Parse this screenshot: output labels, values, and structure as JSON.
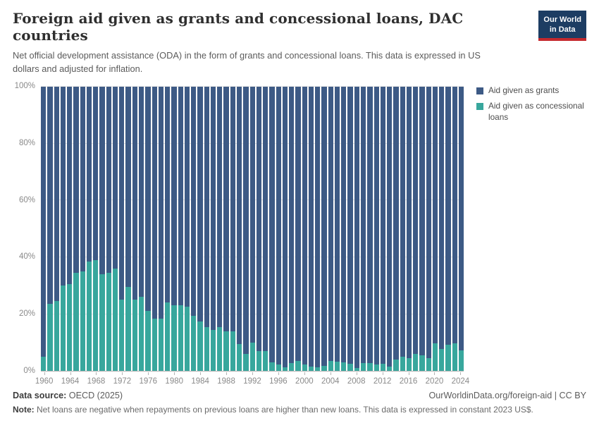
{
  "header": {
    "title": "Foreign aid given as grants and concessional loans, DAC countries",
    "subtitle": "Net official development assistance (ODA) in the form of grants and concessional loans. This data is expressed in US dollars and adjusted for inflation.",
    "logo": {
      "line1": "Our World",
      "line2": "in Data"
    }
  },
  "colors": {
    "grants_blue": "#3d5a85",
    "loans_teal": "#38a79d",
    "logo_navy": "#1d3d63",
    "logo_red": "#c5292d"
  },
  "chart_data": {
    "type": "bar",
    "stacked": true,
    "normalized_percent": true,
    "title": "Foreign aid given as grants and concessional loans, DAC countries",
    "xlabel": "",
    "ylabel": "",
    "ylim": [
      0,
      100
    ],
    "grid": true,
    "legend_position": "right",
    "yticks": [
      0,
      20,
      40,
      60,
      80,
      100
    ],
    "ytick_suffix": "%",
    "xticks": [
      1960,
      1964,
      1968,
      1972,
      1976,
      1980,
      1984,
      1988,
      1992,
      1996,
      2000,
      2004,
      2008,
      2012,
      2016,
      2020,
      2024
    ],
    "x": [
      1960,
      1961,
      1962,
      1963,
      1964,
      1965,
      1966,
      1967,
      1968,
      1969,
      1970,
      1971,
      1972,
      1973,
      1974,
      1975,
      1976,
      1977,
      1978,
      1979,
      1980,
      1981,
      1982,
      1983,
      1984,
      1985,
      1986,
      1987,
      1988,
      1989,
      1990,
      1991,
      1992,
      1993,
      1994,
      1995,
      1996,
      1997,
      1998,
      1999,
      2000,
      2001,
      2002,
      2003,
      2004,
      2005,
      2006,
      2007,
      2008,
      2009,
      2010,
      2011,
      2012,
      2013,
      2014,
      2015,
      2016,
      2017,
      2018,
      2019,
      2020,
      2021,
      2022,
      2023,
      2024
    ],
    "series": [
      {
        "name": "Aid given as grants",
        "color": "#3d5a85",
        "values": [
          95,
          76.5,
          75.5,
          70,
          69.5,
          65.5,
          65,
          61.5,
          61,
          66,
          65.5,
          64,
          75,
          70.5,
          75,
          74,
          79,
          81.5,
          81.5,
          76,
          77,
          77,
          77.5,
          80.5,
          82.5,
          84.5,
          85.5,
          84.5,
          86,
          86,
          90.5,
          94,
          90,
          93,
          93,
          97,
          97.8,
          98.8,
          97.2,
          96.5,
          97.8,
          98.4,
          98.7,
          98.2,
          96.5,
          96.8,
          97,
          97.5,
          99.1,
          97.2,
          97.2,
          97.7,
          97.6,
          98.6,
          95.9,
          95,
          95.4,
          94,
          94.5,
          95.4,
          90.3,
          92.2,
          90.7,
          90.4,
          92.9
        ]
      },
      {
        "name": "Aid given as concessional loans",
        "color": "#38a79d",
        "values": [
          5,
          23.5,
          24.5,
          30,
          30.5,
          34.5,
          35,
          38.5,
          39,
          34,
          34.5,
          36,
          25,
          29.5,
          25,
          26,
          21,
          18.5,
          18.5,
          24,
          23,
          23,
          22.5,
          19.5,
          17.5,
          15.5,
          14.5,
          15.5,
          14,
          14,
          9.5,
          6,
          10,
          7,
          7,
          3,
          2.2,
          1.2,
          2.8,
          3.5,
          2.2,
          1.6,
          1.3,
          1.8,
          3.5,
          3.2,
          3,
          2.5,
          0.9,
          2.8,
          2.8,
          2.3,
          2.4,
          1.4,
          4.1,
          5,
          4.6,
          6,
          5.5,
          4.6,
          9.7,
          7.8,
          9.3,
          9.6,
          7.1
        ]
      }
    ]
  },
  "footer": {
    "source_label": "Data source:",
    "source_value": " OECD (2025)",
    "link": "OurWorldinData.org/foreign-aid | CC BY",
    "note_label": "Note:",
    "note_value": " Net loans are negative when repayments on previous loans are higher than new loans. This data is expressed in constant 2023 US$."
  }
}
